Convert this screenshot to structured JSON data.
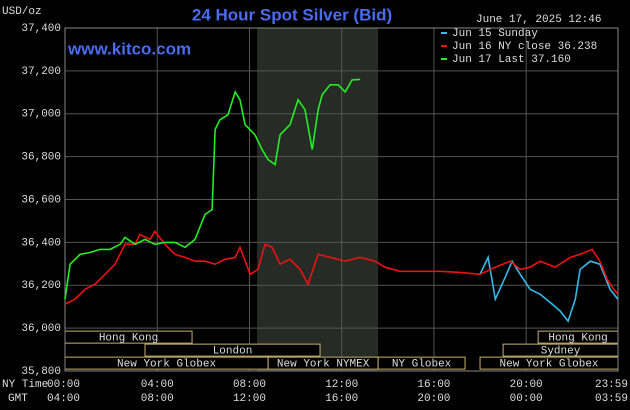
{
  "chart_data": {
    "type": "line",
    "title": "24 Hour Spot Silver (Bid)",
    "y_unit": "USD/oz",
    "website": "www.kitco.com",
    "timestamp": "June 17, 2025 12:46",
    "x_axis_labels": [
      "NY Time",
      "GMT"
    ],
    "xlim": [
      0,
      23.983
    ],
    "xticks": [
      {
        "value": 0,
        "label": "00:00"
      },
      {
        "value": 4,
        "label": "04:00"
      },
      {
        "value": 8,
        "label": "08:00"
      },
      {
        "value": 12,
        "label": "12:00"
      },
      {
        "value": 16,
        "label": "16:00"
      },
      {
        "value": 20,
        "label": "20:00"
      },
      {
        "value": 23.983,
        "label": "23:59"
      }
    ],
    "gmt_labels": [
      "04:00",
      "08:00",
      "12:00",
      "16:00",
      "20:00",
      "00:00",
      "03:59"
    ],
    "ylim": [
      35800,
      37400
    ],
    "yticks": [
      {
        "value": 35800,
        "label": "35,800"
      },
      {
        "value": 36000,
        "label": "36,000"
      },
      {
        "value": 36200,
        "label": "36,200"
      },
      {
        "value": 36400,
        "label": "36,400"
      },
      {
        "value": 36600,
        "label": "36,600"
      },
      {
        "value": 36800,
        "label": "36,800"
      },
      {
        "value": 37000,
        "label": "37,000"
      },
      {
        "value": 37200,
        "label": "37,200"
      },
      {
        "value": 37400,
        "label": "37,400"
      }
    ],
    "grid": true,
    "shaded_range": [
      8.33,
      13.58
    ],
    "session_rows": [
      [
        {
          "label": "Hong Kong",
          "start": 0,
          "end": 5.51
        },
        {
          "label": "Hong Kong",
          "start": 20.52,
          "end": 23.983
        }
      ],
      [
        {
          "label": "London",
          "start": 3.47,
          "end": 11.06
        },
        {
          "label": "Sydney",
          "start": 19.0,
          "end": 23.983
        }
      ],
      [
        {
          "label": "New York Globex",
          "start": 0,
          "end": 8.81
        },
        {
          "label": "New York NYMEX",
          "start": 8.81,
          "end": 13.58
        },
        {
          "label": "NY Globex",
          "start": 13.58,
          "end": 17.35
        },
        {
          "label": "New York Globex",
          "start": 18.0,
          "end": 23.983
        }
      ]
    ],
    "series": [
      {
        "name": "Jun 15 Sunday",
        "color": "#33bbee",
        "x": [
          18.0,
          18.35,
          18.66,
          19.09,
          19.39,
          19.74,
          20.17,
          20.61,
          21.13,
          21.48,
          21.82,
          22.13,
          22.34,
          22.78,
          23.2,
          23.64,
          23.98
        ],
        "values": [
          36251,
          36330,
          36135,
          36237,
          36312,
          36251,
          36181,
          36158,
          36112,
          36079,
          36033,
          36135,
          36274,
          36312,
          36298,
          36181,
          36135
        ]
      },
      {
        "name": "Jun 16 NY close 36.238",
        "color": "#ee1111",
        "x": [
          0,
          0.43,
          0.87,
          1.3,
          1.74,
          2.17,
          2.6,
          3.04,
          3.25,
          3.69,
          3.9,
          4.34,
          4.77,
          5.21,
          5.64,
          6.07,
          6.51,
          6.94,
          7.38,
          7.59,
          8.03,
          8.37,
          8.68,
          8.98,
          9.33,
          9.76,
          10.2,
          10.54,
          10.98,
          11.5,
          12.15,
          12.8,
          13.45,
          13.88,
          14.53,
          15.4,
          16.27,
          17.14,
          18.0,
          18.66,
          19.31,
          19.74,
          20.17,
          20.61,
          21.26,
          21.91,
          22.34,
          22.86,
          23.2,
          23.51,
          23.73,
          23.98
        ],
        "values": [
          36112,
          36135,
          36181,
          36205,
          36251,
          36298,
          36391,
          36391,
          36437,
          36414,
          36451,
          36391,
          36344,
          36330,
          36312,
          36312,
          36298,
          36321,
          36330,
          36377,
          36251,
          36274,
          36391,
          36377,
          36298,
          36321,
          36274,
          36205,
          36344,
          36330,
          36312,
          36330,
          36312,
          36284,
          36265,
          36265,
          36265,
          36260,
          36251,
          36284,
          36312,
          36274,
          36284,
          36312,
          36284,
          36330,
          36344,
          36367,
          36312,
          36228,
          36191,
          36158
        ]
      },
      {
        "name": "Jun 17 Last 37.160",
        "color": "#22ee22",
        "x": [
          0,
          0.22,
          0.65,
          1.08,
          1.52,
          1.95,
          2.39,
          2.6,
          3.04,
          3.47,
          3.9,
          4.34,
          4.77,
          5.21,
          5.64,
          6.07,
          6.38,
          6.51,
          6.72,
          7.07,
          7.38,
          7.59,
          7.81,
          8.24,
          8.55,
          8.81,
          9.11,
          9.33,
          9.76,
          10.11,
          10.41,
          10.72,
          10.98,
          11.15,
          11.5,
          11.84,
          12.15,
          12.45,
          12.8
        ],
        "values": [
          36135,
          36298,
          36344,
          36353,
          36367,
          36367,
          36391,
          36423,
          36391,
          36414,
          36391,
          36400,
          36400,
          36377,
          36414,
          36530,
          36553,
          36926,
          36972,
          36995,
          37102,
          37065,
          36949,
          36902,
          36833,
          36786,
          36763,
          36902,
          36949,
          37065,
          37019,
          36833,
          37019,
          37088,
          37135,
          37135,
          37102,
          37158,
          37160
        ]
      }
    ]
  }
}
